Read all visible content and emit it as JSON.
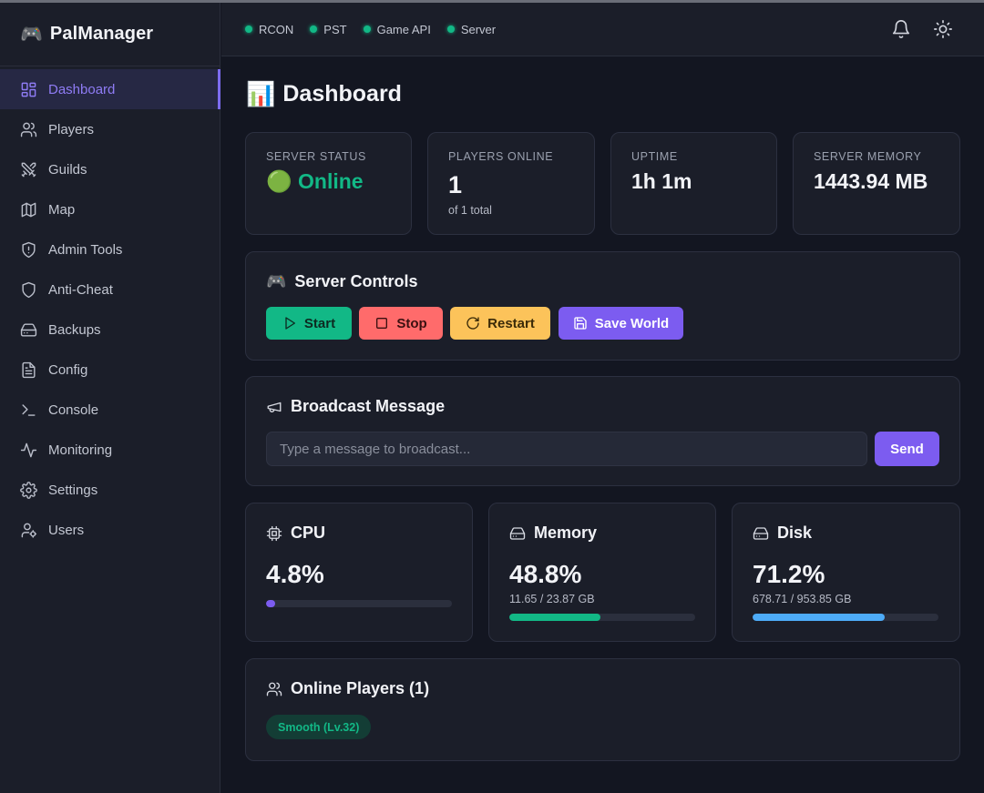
{
  "app": {
    "logo_emoji": "🎮",
    "name": "PalManager"
  },
  "sidebar": {
    "items": [
      {
        "label": "Dashboard",
        "icon": "dashboard-icon",
        "active": true
      },
      {
        "label": "Players",
        "icon": "users-icon"
      },
      {
        "label": "Guilds",
        "icon": "swords-icon"
      },
      {
        "label": "Map",
        "icon": "map-icon"
      },
      {
        "label": "Admin Tools",
        "icon": "shield-alert-icon"
      },
      {
        "label": "Anti-Cheat",
        "icon": "shield-icon"
      },
      {
        "label": "Backups",
        "icon": "hard-drive-icon"
      },
      {
        "label": "Config",
        "icon": "file-text-icon"
      },
      {
        "label": "Console",
        "icon": "terminal-icon"
      },
      {
        "label": "Monitoring",
        "icon": "activity-icon"
      },
      {
        "label": "Settings",
        "icon": "gear-icon"
      },
      {
        "label": "Users",
        "icon": "user-cog-icon"
      }
    ]
  },
  "header": {
    "statuses": [
      {
        "label": "RCON",
        "color": "#12b886"
      },
      {
        "label": "PST",
        "color": "#12b886"
      },
      {
        "label": "Game API",
        "color": "#12b886"
      },
      {
        "label": "Server",
        "color": "#12b886"
      }
    ],
    "icons": [
      "bell-icon",
      "sun-icon"
    ]
  },
  "page": {
    "emoji": "📊",
    "title": "Dashboard"
  },
  "stats": {
    "server_status": {
      "label": "SERVER STATUS",
      "emoji": "🟢",
      "value": "Online"
    },
    "players_online": {
      "label": "PLAYERS ONLINE",
      "value": "1",
      "sub": "of 1 total"
    },
    "uptime": {
      "label": "UPTIME",
      "value": "1h 1m"
    },
    "server_memory": {
      "label": "SERVER MEMORY",
      "value": "1443.94 MB"
    }
  },
  "controls": {
    "title": "Server Controls",
    "title_emoji": "🎮",
    "start": "Start",
    "stop": "Stop",
    "restart": "Restart",
    "save_world": "Save World"
  },
  "broadcast": {
    "title": "Broadcast Message",
    "placeholder": "Type a message to broadcast...",
    "value": "",
    "send": "Send"
  },
  "metrics": {
    "cpu": {
      "title": "CPU",
      "value": "4.8%",
      "percent": 4.8,
      "color": "#7c5cf0"
    },
    "memory": {
      "title": "Memory",
      "value": "48.8%",
      "sub": "11.65 / 23.87 GB",
      "percent": 48.8,
      "color": "#12b886"
    },
    "disk": {
      "title": "Disk",
      "value": "71.2%",
      "sub": "678.71 / 953.85 GB",
      "percent": 71.2,
      "color": "#4dabf7"
    }
  },
  "online_players": {
    "title": "Online Players (1)",
    "players": [
      {
        "label": "Smooth (Lv.32)"
      }
    ]
  }
}
